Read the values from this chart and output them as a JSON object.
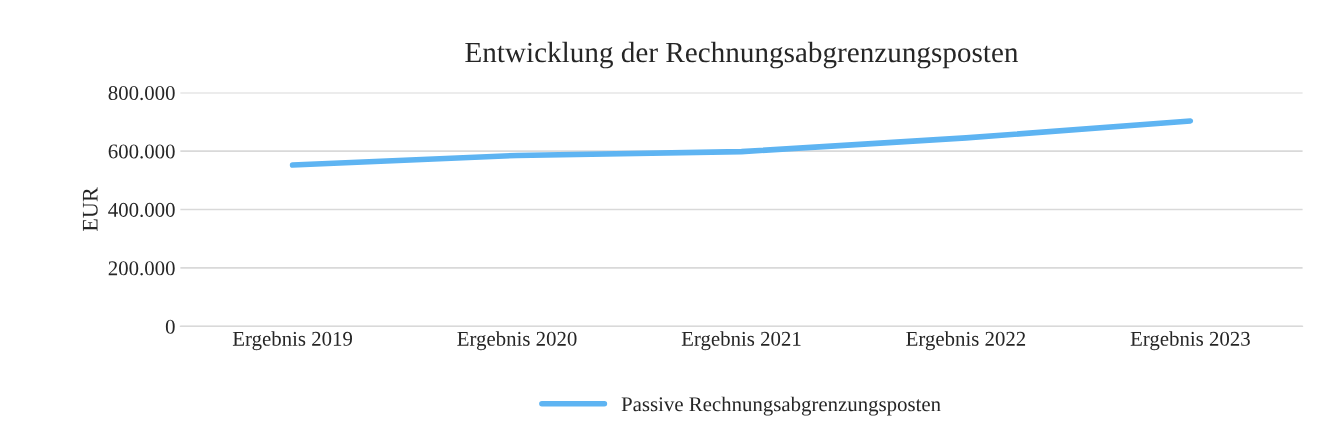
{
  "chart_data": {
    "type": "line",
    "title": "Entwicklung der Rechnungsabgrenzungsposten",
    "ylabel": "EUR",
    "categories": [
      "Ergebnis 2019",
      "Ergebnis 2020",
      "Ergebnis 2021",
      "Ergebnis 2022",
      "Ergebnis 2023"
    ],
    "series": [
      {
        "name": "Passive Rechnungsabgrenzungsposten",
        "color": "#5eb4f2",
        "values": [
          552000,
          585000,
          598000,
          645000,
          703000
        ]
      }
    ],
    "ylim": [
      0,
      800000
    ],
    "yticks": [
      {
        "value": 0,
        "label": "0"
      },
      {
        "value": 200000,
        "label": "200.000"
      },
      {
        "value": 400000,
        "label": "400.000"
      },
      {
        "value": 600000,
        "label": "600.000"
      },
      {
        "value": 800000,
        "label": "800.000"
      }
    ],
    "grid": "y",
    "legend": "bottom",
    "marker": "none",
    "line_style": "solid"
  }
}
